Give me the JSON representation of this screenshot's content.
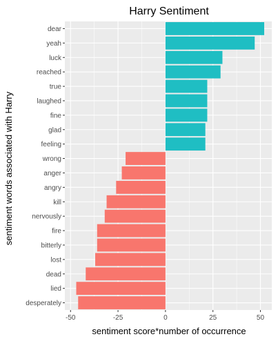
{
  "chart_data": {
    "type": "bar",
    "orientation": "horizontal",
    "title": "Harry Sentiment",
    "xlabel": "sentiment score*number of occurrence",
    "ylabel": "sentiment words associated with Harry",
    "xlim": [
      -53,
      56
    ],
    "xticks": [
      -50,
      -25,
      0,
      25,
      50
    ],
    "xtick_labels": [
      "-50",
      "-25",
      "0",
      "25",
      "50"
    ],
    "grid": true,
    "legend": "none",
    "colors": {
      "positive": "#1fbec3",
      "negative": "#f8766d",
      "panel": "#ebebeb",
      "grid": "#ffffff"
    },
    "categories": [
      "dear",
      "yeah",
      "luck",
      "reached",
      "true",
      "laughed",
      "fine",
      "glad",
      "feeling",
      "wrong",
      "anger",
      "angry",
      "kill",
      "nervously",
      "fire",
      "bitterly",
      "lost",
      "dead",
      "lied",
      "desperately"
    ],
    "values": [
      52,
      47,
      30,
      29,
      22,
      22,
      22,
      21,
      21,
      -21,
      -23,
      -26,
      -31,
      -32,
      -36,
      -36,
      -37,
      -42,
      -47,
      -46
    ]
  }
}
